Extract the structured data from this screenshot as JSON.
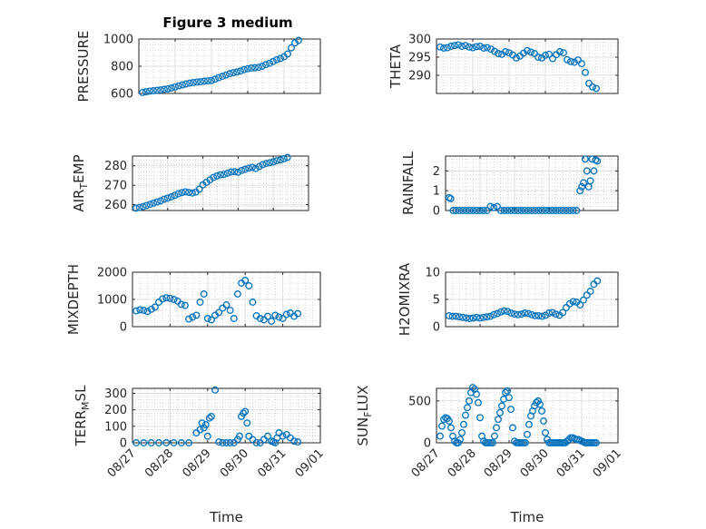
{
  "figure_title": "Figure 3 medium",
  "colors": {
    "marker": "#0072BD",
    "axis": "#262626",
    "grid_major": "#dfdfdf",
    "grid_minor": "#bdbdbd",
    "background": "#ffffff"
  },
  "chart_data": [
    {
      "type": "scatter",
      "title": "Figure 3 medium",
      "ylabel": {
        "main": "PRESSURE",
        "sub": ""
      },
      "ylim": [
        600,
        1000
      ],
      "yticks": [
        600,
        800,
        1000
      ],
      "xlim": [
        "08/27",
        "09/01"
      ],
      "xticks": [
        "08/27",
        "08/28",
        "08/29",
        "08/30",
        "08/31",
        "09/01"
      ],
      "show_xticklabels": false,
      "xlabel": "",
      "grid": true,
      "series": [
        {
          "x": [
            0.1,
            0.2,
            0.3,
            0.4,
            0.5,
            0.6,
            0.7,
            0.8,
            0.9,
            1.0,
            1.1,
            1.2,
            1.3,
            1.4,
            1.5,
            1.6,
            1.7,
            1.8,
            1.9,
            2.0,
            2.1,
            2.2,
            2.3,
            2.4,
            2.5,
            2.6,
            2.7,
            2.8,
            2.9,
            3.0,
            3.1,
            3.2,
            3.3,
            3.4,
            3.5,
            3.6,
            3.7,
            3.8,
            3.9,
            4.0,
            4.1,
            4.2,
            4.3,
            4.4
          ],
          "y": [
            607,
            612,
            617,
            620,
            623,
            626,
            630,
            634,
            640,
            648,
            656,
            663,
            670,
            676,
            680,
            684,
            686,
            690,
            693,
            695,
            705,
            716,
            726,
            735,
            745,
            752,
            758,
            765,
            775,
            782,
            787,
            789,
            792,
            800,
            812,
            822,
            835,
            848,
            857,
            870,
            890,
            935,
            972,
            990
          ]
        }
      ]
    },
    {
      "type": "scatter",
      "ylabel": {
        "main": "THETA",
        "sub": ""
      },
      "ylim": [
        285,
        300
      ],
      "yticks": [
        290,
        295,
        300
      ],
      "xlim": [
        "08/27",
        "09/01"
      ],
      "xticks": [
        "08/27",
        "08/28",
        "08/29",
        "08/30",
        "08/31",
        "09/01"
      ],
      "show_xticklabels": false,
      "xlabel": "",
      "grid": true,
      "series": [
        {
          "x": [
            0.1,
            0.2,
            0.3,
            0.4,
            0.5,
            0.6,
            0.7,
            0.8,
            0.9,
            1.0,
            1.1,
            1.2,
            1.3,
            1.4,
            1.5,
            1.6,
            1.7,
            1.8,
            1.9,
            2.0,
            2.1,
            2.2,
            2.3,
            2.4,
            2.5,
            2.6,
            2.7,
            2.8,
            2.9,
            3.0,
            3.1,
            3.2,
            3.3,
            3.4,
            3.5,
            3.6,
            3.7,
            3.8,
            3.9,
            4.0,
            4.1,
            4.2,
            4.3,
            4.4
          ],
          "y": [
            297.8,
            297.5,
            297.6,
            298.0,
            298.2,
            298.4,
            298.0,
            298.2,
            297.8,
            297.6,
            297.9,
            298.0,
            297.5,
            297.6,
            297.2,
            296.6,
            296.0,
            295.8,
            296.5,
            296.2,
            295.6,
            294.8,
            295.3,
            296.1,
            296.8,
            296.4,
            296.0,
            295.0,
            294.8,
            295.5,
            295.8,
            294.6,
            295.7,
            296.5,
            296.2,
            294.3,
            293.8,
            293.6,
            294.2,
            293.2,
            290.8,
            287.8,
            286.8,
            286.4
          ]
        }
      ]
    },
    {
      "type": "scatter",
      "ylabel": {
        "main": "AIR",
        "sub": "T",
        "tail": "EMP"
      },
      "ylim": [
        257,
        285
      ],
      "yticks": [
        260,
        270,
        280
      ],
      "xlim": [
        "08/27",
        "09/01"
      ],
      "xticks": [
        "08/27",
        "08/28",
        "08/29",
        "08/30",
        "08/31",
        "09/01"
      ],
      "show_xticklabels": false,
      "xlabel": "",
      "grid": true,
      "series": [
        {
          "x": [
            0.1,
            0.2,
            0.3,
            0.4,
            0.5,
            0.6,
            0.7,
            0.8,
            0.9,
            1.0,
            1.1,
            1.2,
            1.3,
            1.4,
            1.5,
            1.6,
            1.7,
            1.8,
            1.9,
            2.0,
            2.1,
            2.2,
            2.3,
            2.4,
            2.5,
            2.6,
            2.7,
            2.8,
            2.9,
            3.0,
            3.1,
            3.2,
            3.3,
            3.4,
            3.5,
            3.6,
            3.7,
            3.8,
            3.9,
            4.0,
            4.1,
            4.2,
            4.3,
            4.4
          ],
          "y": [
            258.2,
            258.6,
            259.0,
            259.6,
            260.2,
            260.8,
            261.4,
            262.0,
            262.8,
            263.4,
            264.0,
            264.8,
            265.6,
            266.2,
            266.6,
            266.3,
            266.0,
            266.5,
            268.0,
            270.2,
            271.5,
            272.8,
            274.0,
            274.8,
            275.4,
            275.6,
            276.2,
            276.8,
            277.0,
            276.7,
            277.6,
            278.2,
            278.8,
            279.2,
            278.6,
            279.6,
            280.6,
            281.2,
            281.6,
            282.0,
            282.6,
            283.0,
            283.6,
            284.3
          ]
        }
      ]
    },
    {
      "type": "scatter",
      "ylabel": {
        "main": "RAINFALL",
        "sub": ""
      },
      "ylim": [
        0,
        2.75
      ],
      "yticks": [
        0,
        1,
        2
      ],
      "xlim": [
        "08/27",
        "09/01"
      ],
      "xticks": [
        "08/27",
        "08/28",
        "08/29",
        "08/30",
        "08/31",
        "09/01"
      ],
      "show_xticklabels": false,
      "xlabel": "",
      "grid": true,
      "series": [
        {
          "x": [
            0.1,
            0.15,
            0.22,
            0.3,
            0.4,
            0.5,
            0.6,
            0.7,
            0.8,
            0.9,
            1.0,
            1.1,
            1.2,
            1.3,
            1.4,
            1.5,
            1.6,
            1.7,
            1.8,
            1.9,
            2.0,
            2.1,
            2.2,
            2.3,
            2.4,
            2.5,
            2.6,
            2.7,
            2.8,
            2.9,
            3.0,
            3.1,
            3.2,
            3.3,
            3.4,
            3.5,
            3.6,
            3.7,
            3.8,
            3.9,
            3.95,
            4.0,
            4.05,
            4.1,
            4.15,
            4.2,
            4.25,
            4.3,
            4.35,
            4.4
          ],
          "y": [
            0.65,
            0.6,
            0,
            0,
            0,
            0,
            0,
            0,
            0,
            0,
            0,
            0,
            0,
            0.2,
            0.15,
            0.2,
            0,
            0,
            0,
            0,
            0,
            0,
            0,
            0,
            0,
            0,
            0,
            0,
            0,
            0,
            0,
            0,
            0,
            0,
            0,
            0,
            0,
            0,
            0,
            1.0,
            1.2,
            1.4,
            2.6,
            2.0,
            1.2,
            1.5,
            2.6,
            2.0,
            2.55,
            2.5
          ]
        }
      ]
    },
    {
      "type": "scatter",
      "ylabel": {
        "main": "MIXDEPTH",
        "sub": ""
      },
      "ylim": [
        0,
        2000
      ],
      "yticks": [
        0,
        1000,
        2000
      ],
      "xlim": [
        "08/27",
        "09/01"
      ],
      "xticks": [
        "08/27",
        "08/28",
        "08/29",
        "08/30",
        "08/31",
        "09/01"
      ],
      "show_xticklabels": false,
      "xlabel": "",
      "grid": true,
      "series": [
        {
          "x": [
            0.1,
            0.2,
            0.3,
            0.4,
            0.5,
            0.6,
            0.7,
            0.8,
            0.9,
            1.0,
            1.1,
            1.2,
            1.3,
            1.4,
            1.5,
            1.6,
            1.7,
            1.8,
            1.9,
            2.0,
            2.1,
            2.2,
            2.3,
            2.4,
            2.5,
            2.6,
            2.7,
            2.8,
            2.9,
            3.0,
            3.1,
            3.2,
            3.3,
            3.4,
            3.5,
            3.6,
            3.7,
            3.8,
            3.9,
            4.0,
            4.1,
            4.2,
            4.3,
            4.4
          ],
          "y": [
            580,
            620,
            600,
            560,
            640,
            720,
            900,
            1020,
            1060,
            1040,
            1000,
            940,
            820,
            780,
            280,
            350,
            420,
            900,
            1200,
            300,
            250,
            420,
            520,
            680,
            800,
            600,
            300,
            1200,
            1600,
            1700,
            1500,
            900,
            400,
            300,
            250,
            380,
            200,
            420,
            350,
            300,
            450,
            500,
            380,
            480
          ]
        }
      ]
    },
    {
      "type": "scatter",
      "ylabel": {
        "main": "H2OMIXRA",
        "sub": ""
      },
      "ylim": [
        0,
        10
      ],
      "yticks": [
        0,
        5,
        10
      ],
      "xlim": [
        "08/27",
        "09/01"
      ],
      "xticks": [
        "08/27",
        "08/28",
        "08/29",
        "08/30",
        "08/31",
        "09/01"
      ],
      "show_xticklabels": false,
      "xlabel": "",
      "grid": true,
      "series": [
        {
          "x": [
            0.1,
            0.2,
            0.3,
            0.4,
            0.5,
            0.6,
            0.7,
            0.8,
            0.9,
            1.0,
            1.1,
            1.2,
            1.3,
            1.4,
            1.5,
            1.6,
            1.7,
            1.8,
            1.9,
            2.0,
            2.1,
            2.2,
            2.3,
            2.4,
            2.5,
            2.6,
            2.7,
            2.8,
            2.9,
            3.0,
            3.1,
            3.2,
            3.3,
            3.4,
            3.5,
            3.6,
            3.7,
            3.8,
            3.9,
            4.0,
            4.1,
            4.2,
            4.3,
            4.4
          ],
          "y": [
            2.0,
            1.9,
            1.9,
            1.8,
            1.7,
            1.6,
            1.5,
            1.6,
            1.7,
            1.6,
            1.7,
            1.8,
            1.9,
            2.2,
            2.4,
            2.7,
            2.9,
            2.8,
            2.5,
            2.3,
            2.2,
            2.3,
            2.5,
            2.4,
            2.2,
            2.0,
            2.0,
            1.9,
            2.1,
            2.5,
            2.6,
            2.3,
            2.1,
            2.6,
            3.5,
            4.2,
            4.6,
            4.5,
            4.0,
            4.9,
            5.8,
            6.5,
            7.8,
            8.4
          ]
        }
      ]
    },
    {
      "type": "scatter",
      "ylabel": {
        "main": "TERR",
        "sub": "M",
        "tail": "SL"
      },
      "ylim": [
        0,
        330
      ],
      "yticks": [
        0,
        100,
        200,
        300
      ],
      "xlim": [
        "08/27",
        "09/01"
      ],
      "xticks": [
        "08/27",
        "08/28",
        "08/29",
        "08/30",
        "08/31",
        "09/01"
      ],
      "show_xticklabels": true,
      "xlabel": "Time",
      "grid": true,
      "series": [
        {
          "x": [
            0.1,
            0.3,
            0.5,
            0.7,
            0.9,
            1.1,
            1.3,
            1.5,
            1.7,
            1.8,
            1.85,
            1.9,
            1.95,
            2.0,
            2.05,
            2.1,
            2.2,
            2.3,
            2.4,
            2.5,
            2.6,
            2.7,
            2.8,
            2.85,
            2.9,
            2.95,
            3.0,
            3.05,
            3.1,
            3.2,
            3.3,
            3.4,
            3.5,
            3.6,
            3.7,
            3.75,
            3.8,
            3.85,
            3.9,
            4.0,
            4.1,
            4.2,
            4.3,
            4.4
          ],
          "y": [
            0,
            0,
            0,
            0,
            0,
            0,
            0,
            0,
            60,
            80,
            120,
            90,
            110,
            40,
            150,
            160,
            320,
            5,
            0,
            0,
            0,
            0,
            20,
            40,
            160,
            180,
            190,
            120,
            40,
            20,
            0,
            0,
            20,
            40,
            10,
            5,
            0,
            30,
            60,
            40,
            50,
            30,
            10,
            5
          ]
        }
      ]
    },
    {
      "type": "scatter",
      "ylabel": {
        "main": "SUN",
        "sub": "F",
        "tail": "LUX"
      },
      "ylim": [
        0,
        650
      ],
      "yticks": [
        0,
        500
      ],
      "xlim": [
        "08/27",
        "09/01"
      ],
      "xticks": [
        "08/27",
        "08/28",
        "08/29",
        "08/30",
        "08/31",
        "09/01"
      ],
      "show_xticklabels": true,
      "xlabel": "Time",
      "grid": true,
      "series": [
        {
          "x": [
            0.1,
            0.15,
            0.2,
            0.25,
            0.3,
            0.35,
            0.4,
            0.45,
            0.5,
            0.55,
            0.6,
            0.65,
            0.7,
            0.75,
            0.8,
            0.85,
            0.9,
            0.95,
            1.0,
            1.05,
            1.1,
            1.15,
            1.2,
            1.25,
            1.3,
            1.35,
            1.4,
            1.45,
            1.5,
            1.55,
            1.6,
            1.65,
            1.7,
            1.75,
            1.8,
            1.85,
            1.9,
            1.95,
            2.0,
            2.05,
            2.1,
            2.15,
            2.2,
            2.25,
            2.3,
            2.35,
            2.4,
            2.45,
            2.5,
            2.55,
            2.6,
            2.65,
            2.7,
            2.75,
            2.8,
            2.85,
            2.9,
            2.95,
            3.0,
            3.05,
            3.1,
            3.15,
            3.2,
            3.25,
            3.3,
            3.35,
            3.4,
            3.45,
            3.5,
            3.55,
            3.6,
            3.65,
            3.7,
            3.75,
            3.8,
            3.85,
            3.9,
            3.95,
            4.0,
            4.05,
            4.1,
            4.15,
            4.2,
            4.25,
            4.3,
            4.35,
            4.4
          ],
          "y": [
            80,
            200,
            280,
            300,
            290,
            260,
            180,
            80,
            20,
            0,
            0,
            40,
            120,
            220,
            330,
            420,
            500,
            600,
            660,
            640,
            580,
            480,
            300,
            80,
            20,
            0,
            0,
            0,
            0,
            0,
            80,
            180,
            280,
            360,
            440,
            520,
            600,
            620,
            540,
            400,
            180,
            20,
            0,
            0,
            0,
            0,
            0,
            0,
            100,
            220,
            320,
            380,
            440,
            480,
            500,
            460,
            380,
            260,
            120,
            40,
            0,
            0,
            0,
            0,
            0,
            0,
            0,
            0,
            0,
            0,
            20,
            40,
            60,
            60,
            50,
            40,
            40,
            30,
            20,
            10,
            0,
            0,
            0,
            0,
            0,
            0,
            0
          ]
        }
      ]
    }
  ]
}
